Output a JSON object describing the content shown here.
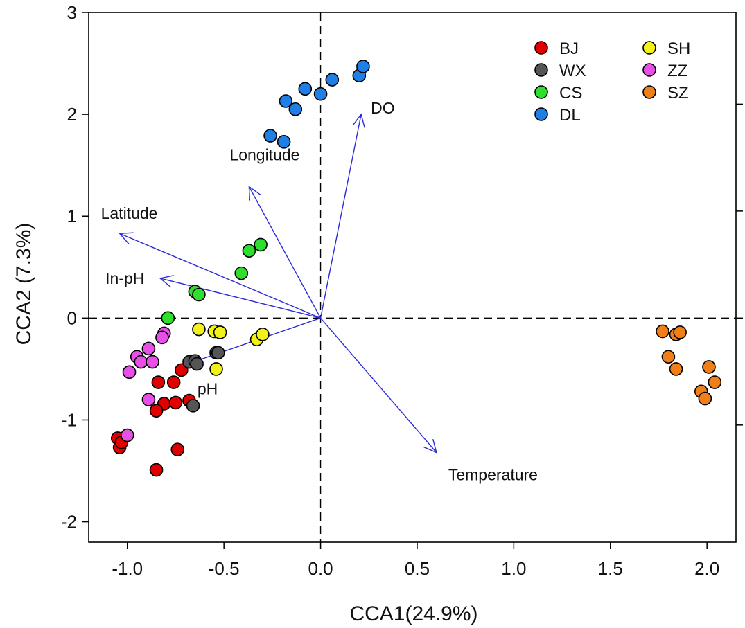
{
  "chart_data": {
    "type": "scatter",
    "xlabel": "CCA1(24.9%)",
    "ylabel": "CCA2 (7.3%)",
    "xlim": [
      -1.2,
      2.15
    ],
    "ylim": [
      -2.2,
      3.0
    ],
    "x_ticks": [
      -1.0,
      -0.5,
      0.0,
      0.5,
      1.0,
      1.5,
      2.0
    ],
    "x_tick_labels": [
      "-1.0",
      "-0.5",
      "0.0",
      "0.5",
      "1.0",
      "1.5",
      "2.0"
    ],
    "y_ticks": [
      -2,
      -1,
      0,
      1,
      2,
      3
    ],
    "y_tick_labels": [
      "-2",
      "-1",
      "0",
      "1",
      "2",
      "3"
    ],
    "right_axis_ticks": [
      -1.05,
      0.0,
      1.05,
      2.1
    ],
    "grid": false,
    "reference_lines": {
      "x": 0,
      "y": 0,
      "style": "dashed"
    },
    "legend_position": "top-right",
    "series": [
      {
        "name": "BJ",
        "color": "#e00000",
        "points": [
          [
            -1.05,
            -1.18
          ],
          [
            -1.04,
            -1.27
          ],
          [
            -1.03,
            -1.22
          ],
          [
            -0.84,
            -0.63
          ],
          [
            -0.76,
            -0.63
          ],
          [
            -0.72,
            -0.51
          ],
          [
            -0.81,
            -0.84
          ],
          [
            -0.75,
            -0.83
          ],
          [
            -0.85,
            -0.91
          ],
          [
            -0.68,
            -0.81
          ],
          [
            -0.74,
            -1.29
          ],
          [
            -0.85,
            -1.49
          ]
        ]
      },
      {
        "name": "WX",
        "color": "#555555",
        "points": [
          [
            -0.68,
            -0.43
          ],
          [
            -0.65,
            -0.42
          ],
          [
            -0.64,
            -0.45
          ],
          [
            -0.54,
            -0.34
          ],
          [
            -0.53,
            -0.34
          ],
          [
            -0.66,
            -0.86
          ]
        ]
      },
      {
        "name": "CS",
        "color": "#2ee02e",
        "points": [
          [
            -0.79,
            0.0
          ],
          [
            -0.65,
            0.26
          ],
          [
            -0.63,
            0.23
          ],
          [
            -0.41,
            0.44
          ],
          [
            -0.37,
            0.66
          ],
          [
            -0.31,
            0.72
          ]
        ]
      },
      {
        "name": "DL",
        "color": "#1e7fe6",
        "points": [
          [
            -0.26,
            1.79
          ],
          [
            -0.19,
            1.73
          ],
          [
            -0.18,
            2.13
          ],
          [
            -0.13,
            2.05
          ],
          [
            -0.08,
            2.25
          ],
          [
            0.0,
            2.2
          ],
          [
            0.06,
            2.34
          ],
          [
            0.2,
            2.38
          ],
          [
            0.22,
            2.47
          ]
        ]
      },
      {
        "name": "SH",
        "color": "#f2f21a",
        "points": [
          [
            -0.63,
            -0.11
          ],
          [
            -0.55,
            -0.13
          ],
          [
            -0.52,
            -0.14
          ],
          [
            -0.54,
            -0.5
          ],
          [
            -0.33,
            -0.21
          ],
          [
            -0.3,
            -0.16
          ]
        ]
      },
      {
        "name": "ZZ",
        "color": "#e650e6",
        "points": [
          [
            -0.81,
            -0.15
          ],
          [
            -0.82,
            -0.19
          ],
          [
            -0.89,
            -0.3
          ],
          [
            -0.95,
            -0.38
          ],
          [
            -0.93,
            -0.43
          ],
          [
            -0.87,
            -0.43
          ],
          [
            -0.99,
            -0.53
          ],
          [
            -0.89,
            -0.8
          ],
          [
            -1.0,
            -1.15
          ]
        ]
      },
      {
        "name": "SZ",
        "color": "#f07f1a",
        "points": [
          [
            1.77,
            -0.13
          ],
          [
            1.84,
            -0.16
          ],
          [
            1.86,
            -0.14
          ],
          [
            1.8,
            -0.38
          ],
          [
            1.84,
            -0.5
          ],
          [
            2.01,
            -0.48
          ],
          [
            2.04,
            -0.63
          ],
          [
            1.97,
            -0.72
          ],
          [
            1.99,
            -0.79
          ]
        ]
      }
    ],
    "vectors": [
      {
        "label": "DO",
        "x": 0.21,
        "y": 2.0
      },
      {
        "label": "Longitude",
        "x": -0.37,
        "y": 1.29
      },
      {
        "label": "Latitude",
        "x": -1.04,
        "y": 0.83
      },
      {
        "label": "In-pH",
        "x": -0.83,
        "y": 0.39
      },
      {
        "label": "pH",
        "x": -0.72,
        "y": -0.47
      },
      {
        "label": "Temperature",
        "x": 0.6,
        "y": -1.32
      }
    ]
  }
}
